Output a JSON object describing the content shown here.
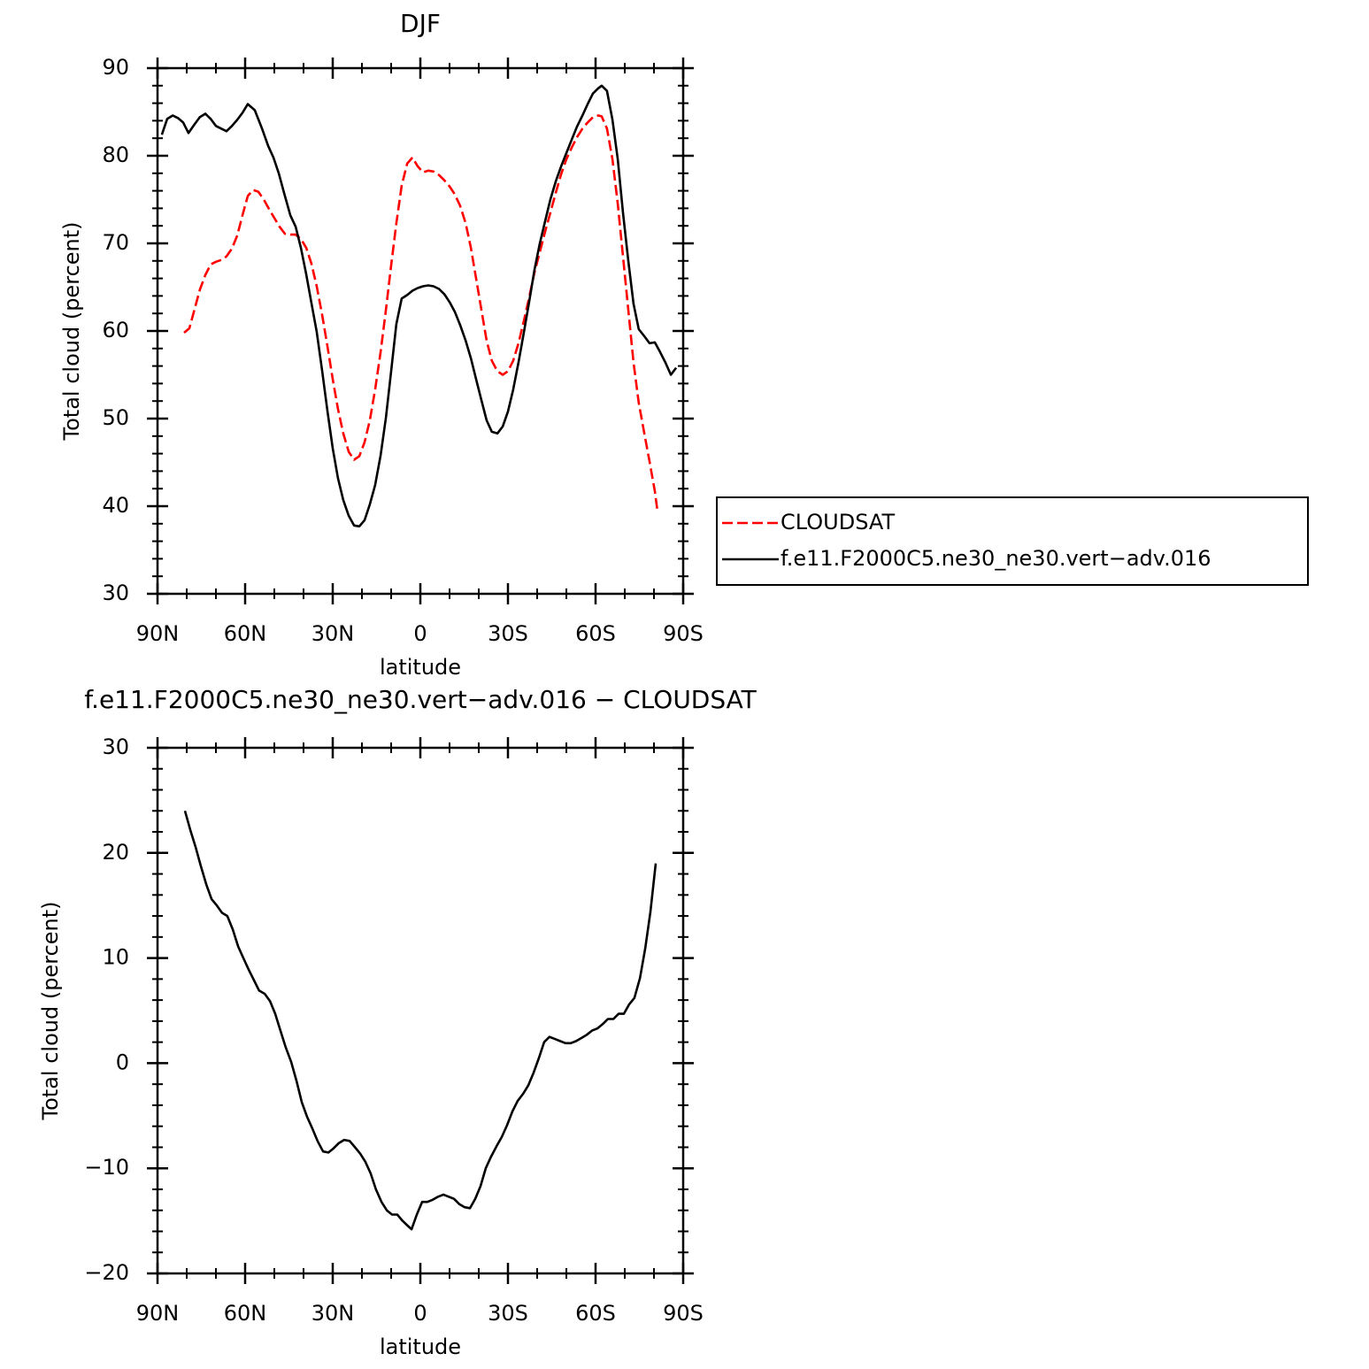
{
  "chart_data": [
    {
      "type": "line",
      "title": "DJF",
      "x_label": "latitude",
      "y_label": "Total cloud (percent)",
      "xlim": [
        90,
        -90
      ],
      "xticks": [
        {
          "value": 90,
          "label": "90N"
        },
        {
          "value": 60,
          "label": "60N"
        },
        {
          "value": 30,
          "label": "30N"
        },
        0,
        {
          "value": -30,
          "label": "30S"
        },
        {
          "value": -60,
          "label": "60S"
        },
        {
          "value": -90,
          "label": "90S"
        }
      ],
      "ylim": [
        30,
        90
      ],
      "yticks": [
        30,
        40,
        50,
        60,
        70,
        80,
        90
      ],
      "legend": "right",
      "series": [
        {
          "name": "CLOUDSAT",
          "color": "#ff0000",
          "line_style": "dashed",
          "x": [
            80.9,
            79.1,
            77.3,
            75.5,
            73.6,
            71.8,
            70.0,
            68.2,
            66.4,
            64.5,
            62.7,
            60.9,
            59.1,
            57.3,
            55.5,
            53.6,
            51.8,
            50.0,
            48.2,
            46.4,
            44.5,
            42.7,
            40.9,
            39.1,
            37.3,
            35.5,
            33.6,
            31.8,
            30.0,
            28.2,
            26.4,
            24.5,
            22.7,
            20.9,
            19.1,
            17.3,
            15.5,
            13.6,
            11.8,
            10.0,
            8.2,
            6.4,
            4.5,
            2.7,
            0.9,
            -0.9,
            -2.7,
            -4.5,
            -6.4,
            -8.2,
            -10.0,
            -11.8,
            -13.6,
            -15.5,
            -17.3,
            -19.1,
            -20.9,
            -22.7,
            -24.5,
            -26.4,
            -28.2,
            -30.0,
            -31.8,
            -33.6,
            -35.5,
            -37.3,
            -39.1,
            -40.9,
            -42.7,
            -44.5,
            -46.4,
            -48.2,
            -50.0,
            -51.8,
            -53.6,
            -55.5,
            -57.3,
            -59.1,
            -60.9,
            -62.1,
            -63.9,
            -65.8,
            -67.6,
            -69.4,
            -71.2,
            -73.0,
            -74.8,
            -76.7,
            -78.5,
            -80.3,
            -81.2
          ],
          "values": [
            59.8,
            60.3,
            62.5,
            64.7,
            66.4,
            67.6,
            67.9,
            68.1,
            68.5,
            69.4,
            70.9,
            73.2,
            75.4,
            76.1,
            75.9,
            75.0,
            73.9,
            72.9,
            71.9,
            71.1,
            71.0,
            71.0,
            70.5,
            69.5,
            67.7,
            65.1,
            61.8,
            58.2,
            54.5,
            51.1,
            48.3,
            46.2,
            45.3,
            45.7,
            47.3,
            49.8,
            53.3,
            57.6,
            62.4,
            67.5,
            72.3,
            76.6,
            79.1,
            79.8,
            78.8,
            78.1,
            78.3,
            78.2,
            77.8,
            77.2,
            76.5,
            75.6,
            74.3,
            72.3,
            69.5,
            66.0,
            62.4,
            58.9,
            56.6,
            55.4,
            55.0,
            55.4,
            56.6,
            58.6,
            61.2,
            63.9,
            66.7,
            69.0,
            71.3,
            73.5,
            75.8,
            77.9,
            79.6,
            80.9,
            82.1,
            83.1,
            83.8,
            84.4,
            84.6,
            84.5,
            83.1,
            79.6,
            74.5,
            68.5,
            62.4,
            56.4,
            51.8,
            48.3,
            45.1,
            41.7,
            39.4
          ]
        },
        {
          "name": "f.e11.F2000C5.ne30_ne30.vert−adv.016",
          "color": "#000000",
          "line_style": "solid",
          "x": [
            88.5,
            86.7,
            84.8,
            83.0,
            81.2,
            79.4,
            77.3,
            75.5,
            73.6,
            71.8,
            70.0,
            68.2,
            66.4,
            64.5,
            62.7,
            60.9,
            59.1,
            56.7,
            54.2,
            52.1,
            50.3,
            48.5,
            46.7,
            44.5,
            42.7,
            40.9,
            39.1,
            37.3,
            35.5,
            33.6,
            31.8,
            30.0,
            28.2,
            26.4,
            24.5,
            22.7,
            20.9,
            19.1,
            17.3,
            15.5,
            13.6,
            11.8,
            10.0,
            8.2,
            6.4,
            4.5,
            2.7,
            0.9,
            -0.9,
            -2.7,
            -4.5,
            -6.4,
            -8.2,
            -10.0,
            -11.8,
            -13.6,
            -15.5,
            -17.3,
            -19.1,
            -20.9,
            -22.7,
            -24.5,
            -26.4,
            -28.2,
            -30.0,
            -31.8,
            -33.6,
            -35.5,
            -37.3,
            -39.1,
            -40.9,
            -42.7,
            -44.5,
            -46.4,
            -48.2,
            -50.0,
            -51.8,
            -53.6,
            -55.5,
            -57.3,
            -59.1,
            -60.9,
            -62.1,
            -63.9,
            -65.8,
            -67.6,
            -69.4,
            -71.2,
            -73.0,
            -74.8,
            -76.7,
            -78.5,
            -80.3,
            -82.1,
            -83.9,
            -85.8,
            -87.6
          ],
          "values": [
            82.4,
            84.2,
            84.6,
            84.3,
            83.8,
            82.6,
            83.6,
            84.4,
            84.8,
            84.2,
            83.4,
            83.1,
            82.8,
            83.4,
            84.1,
            84.9,
            85.9,
            85.2,
            83.1,
            81.1,
            79.8,
            78.0,
            75.8,
            73.2,
            71.9,
            69.5,
            66.5,
            63.2,
            59.9,
            55.4,
            50.8,
            46.6,
            43.2,
            40.7,
            38.9,
            37.8,
            37.7,
            38.4,
            40.2,
            42.4,
            45.8,
            50.1,
            55.4,
            60.8,
            63.7,
            64.1,
            64.6,
            64.9,
            65.1,
            65.2,
            65.1,
            64.8,
            64.2,
            63.3,
            62.2,
            60.7,
            58.9,
            56.9,
            54.5,
            52.1,
            49.8,
            48.5,
            48.3,
            49.1,
            50.8,
            53.3,
            56.4,
            59.9,
            63.4,
            67.0,
            70.0,
            72.5,
            75.0,
            77.1,
            78.8,
            80.3,
            81.8,
            83.3,
            84.6,
            85.9,
            87.1,
            87.7,
            88.0,
            87.4,
            84.1,
            79.6,
            73.5,
            68.0,
            63.1,
            60.2,
            59.4,
            58.6,
            58.7,
            57.6,
            56.4,
            55.0,
            55.8
          ]
        }
      ]
    },
    {
      "type": "line",
      "title": "f.e11.F2000C5.ne30_ne30.vert−adv.016 − CLOUDSAT",
      "x_label": "latitude",
      "y_label": "Total cloud (percent)",
      "xlim": [
        90,
        -90
      ],
      "xticks": [
        {
          "value": 90,
          "label": "90N"
        },
        {
          "value": 60,
          "label": "60N"
        },
        {
          "value": 30,
          "label": "30N"
        },
        0,
        {
          "value": -30,
          "label": "30S"
        },
        {
          "value": -60,
          "label": "60S"
        },
        {
          "value": -90,
          "label": "90S"
        }
      ],
      "ylim": [
        -20,
        30
      ],
      "yticks": [
        {
          "value": -20,
          "label": "−20"
        },
        {
          "value": -10,
          "label": "−10"
        },
        0,
        10,
        20,
        30
      ],
      "series": [
        {
          "color": "#000000",
          "line_style": "solid",
          "x": [
            80.6,
            78.8,
            77.0,
            75.2,
            73.3,
            71.5,
            69.7,
            67.9,
            66.1,
            64.2,
            62.4,
            60.6,
            58.8,
            57.0,
            55.2,
            53.3,
            51.5,
            49.7,
            47.9,
            46.1,
            44.2,
            42.4,
            40.6,
            38.8,
            37.0,
            35.2,
            33.3,
            31.5,
            29.7,
            27.9,
            26.1,
            24.2,
            22.4,
            20.6,
            18.8,
            17.0,
            15.2,
            13.3,
            11.5,
            9.7,
            7.9,
            6.1,
            4.2,
            3.0,
            1.2,
            -0.6,
            -2.4,
            -4.2,
            -6.1,
            -7.9,
            -9.7,
            -11.5,
            -13.3,
            -15.2,
            -17.0,
            -18.8,
            -20.6,
            -22.4,
            -24.2,
            -26.1,
            -27.9,
            -29.7,
            -31.5,
            -33.3,
            -35.2,
            -37.0,
            -38.8,
            -40.6,
            -42.4,
            -44.2,
            -46.1,
            -47.9,
            -49.7,
            -51.5,
            -53.3,
            -55.2,
            -57.0,
            -58.8,
            -60.6,
            -62.4,
            -64.2,
            -66.1,
            -67.9,
            -69.7,
            -71.5,
            -73.3,
            -75.2,
            -77.0,
            -78.8,
            -80.6
          ],
          "values": [
            24.0,
            22.2,
            20.6,
            18.8,
            17.0,
            15.6,
            15.0,
            14.3,
            14.0,
            12.7,
            11.1,
            10.0,
            8.9,
            7.9,
            6.9,
            6.6,
            5.9,
            4.7,
            3.1,
            1.5,
            0.1,
            -1.7,
            -3.7,
            -5.1,
            -6.2,
            -7.4,
            -8.4,
            -8.5,
            -8.1,
            -7.6,
            -7.3,
            -7.4,
            -8.0,
            -8.6,
            -9.4,
            -10.5,
            -12.0,
            -13.2,
            -14.0,
            -14.4,
            -14.4,
            -15.0,
            -15.5,
            -15.8,
            -14.4,
            -13.2,
            -13.2,
            -13.0,
            -12.7,
            -12.5,
            -12.7,
            -12.9,
            -13.4,
            -13.7,
            -13.8,
            -12.9,
            -11.7,
            -10.0,
            -8.9,
            -7.9,
            -7.0,
            -5.9,
            -4.6,
            -3.6,
            -2.9,
            -2.1,
            -0.9,
            0.5,
            2.0,
            2.5,
            2.3,
            2.1,
            1.9,
            1.9,
            2.1,
            2.4,
            2.7,
            3.1,
            3.3,
            3.7,
            4.2,
            4.2,
            4.7,
            4.7,
            5.6,
            6.2,
            8.1,
            10.9,
            14.4,
            19.0
          ]
        }
      ]
    }
  ]
}
